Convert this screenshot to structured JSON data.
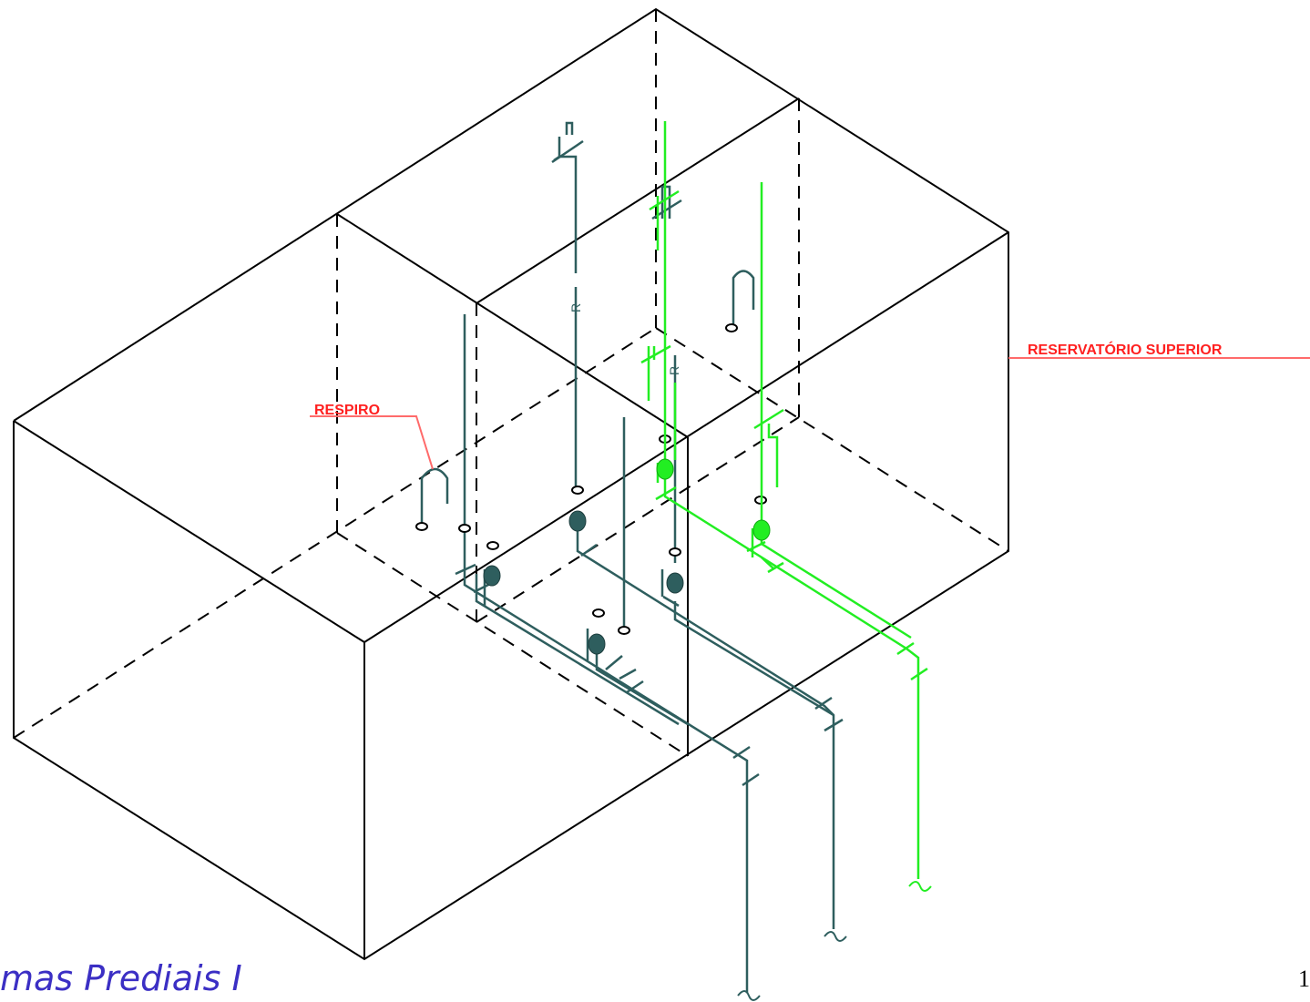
{
  "labels": {
    "respiro": "RESPIRO",
    "reservatorio": "RESERVATÓRIO SUPERIOR",
    "pipe_marker_1": "R",
    "pipe_marker_2": "R"
  },
  "footer": {
    "title": "mas Prediais I",
    "page_number": "1"
  },
  "colors": {
    "edge": "#000000",
    "pipe_gray": "#2e5e5e",
    "pipe_green": "#22ee22",
    "label_red": "#ff2020",
    "leader": "#ff6a6a",
    "footer_text": "#3b2fc4"
  }
}
